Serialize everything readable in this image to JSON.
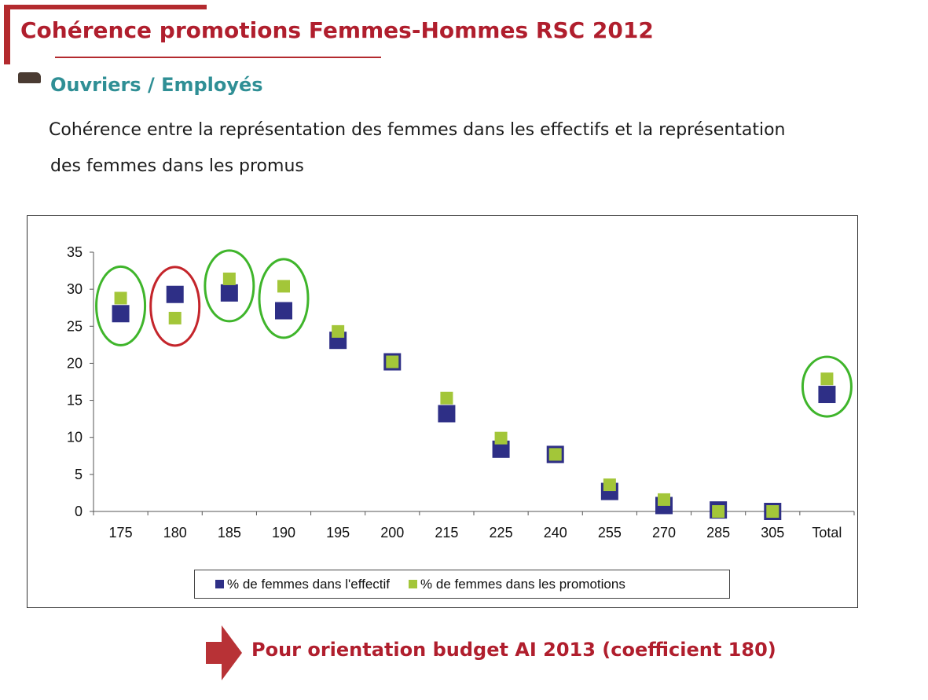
{
  "header": {
    "title": "Cohérence promotions Femmes-Hommes RSC 2012",
    "subtitle": "Ouvriers / Employés",
    "description_line1": "Cohérence entre la représentation des femmes dans les effectifs et la représentation",
    "description_line2": "des femmes dans les promus",
    "accent_color": "#b01e2d",
    "subtitle_color": "#2f8f95"
  },
  "chart_data": {
    "type": "scatter",
    "categories": [
      "175",
      "180",
      "185",
      "190",
      "195",
      "200",
      "215",
      "225",
      "240",
      "255",
      "270",
      "285",
      "305",
      "Total"
    ],
    "series": [
      {
        "name": "% de femmes dans l'effectif",
        "color": "#2e2f86",
        "values": [
          26.7,
          29.3,
          29.5,
          27.1,
          23.1,
          20.2,
          13.2,
          8.4,
          7.7,
          2.7,
          0.8,
          0.2,
          0.0,
          15.8
        ]
      },
      {
        "name": "% de femmes dans les promotions",
        "color": "#a3c639",
        "values": [
          28.8,
          26.1,
          31.4,
          30.4,
          24.3,
          20.2,
          15.3,
          9.9,
          7.7,
          3.6,
          1.6,
          0.0,
          0.0,
          17.9
        ]
      }
    ],
    "yticks": [
      "0",
      "5",
      "10",
      "15",
      "20",
      "25",
      "30",
      "35"
    ],
    "ylim": [
      0,
      35
    ],
    "grid": false,
    "legend_position": "bottom",
    "highlight_circles": [
      {
        "category": "175",
        "color": "#3fb52b"
      },
      {
        "category": "180",
        "color": "#c4252b"
      },
      {
        "category": "185",
        "color": "#3fb52b"
      },
      {
        "category": "190",
        "color": "#3fb52b"
      },
      {
        "category": "Total",
        "color": "#3fb52b"
      }
    ]
  },
  "footer": {
    "conclusion": "Pour orientation budget AI 2013 (coefficient 180)",
    "arrow_icon": "right-arrow-icon",
    "arrow_color": "#b83236"
  }
}
